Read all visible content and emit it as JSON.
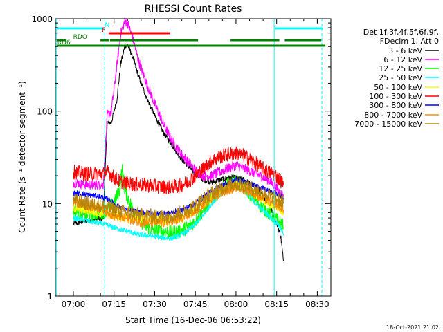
{
  "chart_data": {
    "type": "line",
    "title": "RHESSI Count Rates",
    "xlabel": "Start Time (16-Dec-06 06:53:22)",
    "ylabel": "Count Rate (s⁻¹ detector segment⁻¹)",
    "x_ticks": [
      "07:00",
      "07:15",
      "07:30",
      "07:45",
      "08:00",
      "08:15",
      "08:30"
    ],
    "x_tick_minutes": [
      420,
      435,
      450,
      465,
      480,
      495,
      510
    ],
    "xlim_minutes": [
      413.37,
      515
    ],
    "y_ticks": [
      "1",
      "10",
      "100",
      "1000"
    ],
    "ylim": [
      1,
      1000
    ],
    "y_scale": "log",
    "legend_header": [
      "Det 1f,3f,4f,5f,6f,9f,",
      "FDecim 1, Att 0"
    ],
    "legend_position": "right",
    "series": [
      {
        "name": "3 - 6 keV",
        "color": "#000000",
        "points": [
          [
            420,
            6
          ],
          [
            425,
            6.5
          ],
          [
            431,
            7
          ],
          [
            432.5,
            75
          ],
          [
            434,
            75
          ],
          [
            436,
            130
          ],
          [
            437.5,
            330
          ],
          [
            439,
            500
          ],
          [
            440,
            520
          ],
          [
            442,
            380
          ],
          [
            444,
            240
          ],
          [
            447,
            140
          ],
          [
            450,
            90
          ],
          [
            453,
            60
          ],
          [
            456,
            45
          ],
          [
            459,
            33
          ],
          [
            462,
            26
          ],
          [
            465,
            21
          ],
          [
            468,
            18
          ],
          [
            471,
            17
          ],
          [
            474,
            18
          ],
          [
            477,
            19
          ],
          [
            480,
            19
          ],
          [
            483,
            18
          ],
          [
            486,
            16
          ],
          [
            489,
            13
          ],
          [
            492,
            10
          ],
          [
            494,
            7.5
          ],
          [
            495.5,
            5.5
          ],
          [
            496.5,
            4.5
          ],
          [
            497.5,
            2.4
          ]
        ]
      },
      {
        "name": "6 - 12 keV",
        "color": "#ff00ff",
        "points": [
          [
            420,
            17
          ],
          [
            425,
            16
          ],
          [
            431,
            16
          ],
          [
            432.5,
            90
          ],
          [
            434,
            100
          ],
          [
            436,
            300
          ],
          [
            437.5,
            700
          ],
          [
            439,
            940
          ],
          [
            440,
            900
          ],
          [
            442,
            600
          ],
          [
            444,
            350
          ],
          [
            447,
            200
          ],
          [
            450,
            120
          ],
          [
            453,
            75
          ],
          [
            456,
            50
          ],
          [
            459,
            37
          ],
          [
            462,
            29
          ],
          [
            465,
            23
          ],
          [
            468,
            20
          ],
          [
            471,
            20
          ],
          [
            474,
            22
          ],
          [
            477,
            24
          ],
          [
            480,
            26
          ],
          [
            483,
            24
          ],
          [
            486,
            22
          ],
          [
            489,
            20
          ],
          [
            492,
            18
          ],
          [
            494,
            16
          ],
          [
            495.5,
            14
          ],
          [
            497,
            12.5
          ],
          [
            497.5,
            12
          ]
        ]
      },
      {
        "name": "12 - 25 keV",
        "color": "#00ff00",
        "points": [
          [
            420,
            8.5
          ],
          [
            425,
            7.5
          ],
          [
            431,
            8
          ],
          [
            433,
            9
          ],
          [
            435,
            10
          ],
          [
            437,
            14
          ],
          [
            438,
            24
          ],
          [
            439,
            14
          ],
          [
            441,
            10
          ],
          [
            444,
            7
          ],
          [
            447,
            5.5
          ],
          [
            450,
            5.2
          ],
          [
            453,
            5
          ],
          [
            456,
            4.9
          ],
          [
            459,
            5
          ],
          [
            462,
            5.5
          ],
          [
            465,
            6.5
          ],
          [
            468,
            8.5
          ],
          [
            471,
            11
          ],
          [
            474,
            14
          ],
          [
            477,
            16
          ],
          [
            480,
            17
          ],
          [
            483,
            15
          ],
          [
            486,
            12
          ],
          [
            489,
            9.5
          ],
          [
            492,
            8
          ],
          [
            494,
            7
          ],
          [
            495.5,
            6.5
          ],
          [
            497,
            6
          ],
          [
            497.5,
            5.5
          ]
        ]
      },
      {
        "name": "25 - 50 keV",
        "color": "#00ffff",
        "points": [
          [
            420,
            7
          ],
          [
            425,
            6.5
          ],
          [
            431,
            6
          ],
          [
            435,
            5.5
          ],
          [
            440,
            5
          ],
          [
            444,
            4.6
          ],
          [
            448,
            4.5
          ],
          [
            452,
            4.3
          ],
          [
            456,
            4.2
          ],
          [
            459,
            4.5
          ],
          [
            462,
            5
          ],
          [
            465,
            6
          ],
          [
            468,
            7.5
          ],
          [
            471,
            10
          ],
          [
            474,
            12.5
          ],
          [
            477,
            14.5
          ],
          [
            480,
            15.5
          ],
          [
            483,
            14
          ],
          [
            486,
            11
          ],
          [
            489,
            9
          ],
          [
            492,
            7.5
          ],
          [
            494,
            6.5
          ],
          [
            495.5,
            6
          ],
          [
            497,
            5
          ],
          [
            497.5,
            4.5
          ]
        ]
      },
      {
        "name": "50 - 100 keV",
        "color": "#ffff00",
        "points": [
          [
            420,
            9
          ],
          [
            425,
            8.5
          ],
          [
            430,
            8
          ],
          [
            435,
            7.5
          ],
          [
            440,
            7
          ],
          [
            445,
            6.8
          ],
          [
            450,
            6.6
          ],
          [
            455,
            6.6
          ],
          [
            460,
            7
          ],
          [
            465,
            8.5
          ],
          [
            470,
            11
          ],
          [
            475,
            14
          ],
          [
            480,
            16
          ],
          [
            485,
            14
          ],
          [
            490,
            11
          ],
          [
            494,
            9.5
          ],
          [
            497,
            8.5
          ],
          [
            497.5,
            8
          ]
        ]
      },
      {
        "name": "100 - 300 keV",
        "color": "#ff0000",
        "points": [
          [
            420,
            22
          ],
          [
            425,
            21
          ],
          [
            431,
            21
          ],
          [
            433,
            22
          ],
          [
            435,
            19
          ],
          [
            437,
            17.5
          ],
          [
            440,
            16.5
          ],
          [
            445,
            16
          ],
          [
            450,
            15.5
          ],
          [
            455,
            15
          ],
          [
            459,
            15.5
          ],
          [
            462,
            17
          ],
          [
            465,
            20
          ],
          [
            468,
            24
          ],
          [
            471,
            29
          ],
          [
            474,
            32
          ],
          [
            477,
            34
          ],
          [
            480,
            35
          ],
          [
            483,
            33
          ],
          [
            486,
            29
          ],
          [
            489,
            25
          ],
          [
            492,
            22
          ],
          [
            494,
            21
          ],
          [
            495.5,
            19
          ],
          [
            497,
            17
          ],
          [
            497.5,
            16
          ]
        ]
      },
      {
        "name": "300 - 800 keV",
        "color": "#0000ff",
        "points": [
          [
            420,
            13
          ],
          [
            425,
            12.5
          ],
          [
            430,
            12
          ],
          [
            433,
            11
          ],
          [
            436,
            9.5
          ],
          [
            440,
            8.5
          ],
          [
            445,
            8
          ],
          [
            450,
            7.8
          ],
          [
            455,
            7.8
          ],
          [
            460,
            8.5
          ],
          [
            465,
            10
          ],
          [
            470,
            13
          ],
          [
            475,
            16
          ],
          [
            480,
            18
          ],
          [
            485,
            16.5
          ],
          [
            490,
            14.5
          ],
          [
            494,
            13
          ],
          [
            497,
            12
          ],
          [
            497.5,
            11.5
          ]
        ]
      },
      {
        "name": "800 - 7000 keV",
        "color": "#ff8c00",
        "points": [
          [
            420,
            10.5
          ],
          [
            425,
            9.5
          ],
          [
            430,
            9
          ],
          [
            433,
            8
          ],
          [
            436,
            7.2
          ],
          [
            440,
            6.8
          ],
          [
            445,
            6.3
          ],
          [
            450,
            6.2
          ],
          [
            455,
            6.2
          ],
          [
            460,
            6.8
          ],
          [
            465,
            8.2
          ],
          [
            470,
            11
          ],
          [
            475,
            13.5
          ],
          [
            480,
            15
          ],
          [
            485,
            13.5
          ],
          [
            490,
            11.5
          ],
          [
            494,
            10
          ],
          [
            497,
            9
          ],
          [
            497.5,
            8.5
          ]
        ]
      },
      {
        "name": "7000 - 15000 keV",
        "color": "#b8860b",
        "points": [
          [
            420,
            11
          ],
          [
            425,
            10
          ],
          [
            430,
            9.5
          ],
          [
            433,
            9
          ],
          [
            436,
            8.5
          ],
          [
            440,
            8
          ],
          [
            445,
            7.5
          ],
          [
            450,
            7.3
          ],
          [
            455,
            7.3
          ],
          [
            460,
            8
          ],
          [
            465,
            9.5
          ],
          [
            470,
            12.5
          ],
          [
            475,
            15
          ],
          [
            480,
            16.5
          ],
          [
            485,
            15
          ],
          [
            490,
            13
          ],
          [
            494,
            11.5
          ],
          [
            497,
            10.5
          ],
          [
            497.5,
            10
          ]
        ]
      }
    ],
    "vertical_lines": [
      {
        "minute": 413.8,
        "color": "#00ffff",
        "style": "solid"
      },
      {
        "minute": 431.6,
        "color": "#00ffff",
        "style": "dashed"
      },
      {
        "minute": 494.1,
        "color": "#00ffff",
        "style": "solid"
      },
      {
        "minute": 511.7,
        "color": "#00ffff",
        "style": "dashed"
      }
    ],
    "flag_bars": [
      {
        "label": "N",
        "color": "#00ffff",
        "segments": [
          [
            414,
            431.4
          ],
          [
            494.4,
            512
          ]
        ],
        "label_minute": 432.5
      },
      {
        "label": "F",
        "color": "#ff0000",
        "segments": [
          [
            433,
            455.5
          ]
        ],
        "label_minute": 431.2
      },
      {
        "label": "RDO",
        "color": "#008000",
        "segments": [
          [
            413.8,
            417.5
          ],
          [
            430,
            433.2
          ],
          [
            433.5,
            466
          ],
          [
            478,
            496
          ],
          [
            498,
            511.5
          ]
        ],
        "label_minute": 422.5
      },
      {
        "label": "RD6",
        "color": "#008000",
        "segments": [
          [
            413.8,
            466
          ],
          [
            466,
            496
          ],
          [
            496,
            513
          ]
        ],
        "label_minute": 416.5
      }
    ]
  },
  "footer": {
    "date_stamp": "18-Oct-2021 21:02"
  }
}
